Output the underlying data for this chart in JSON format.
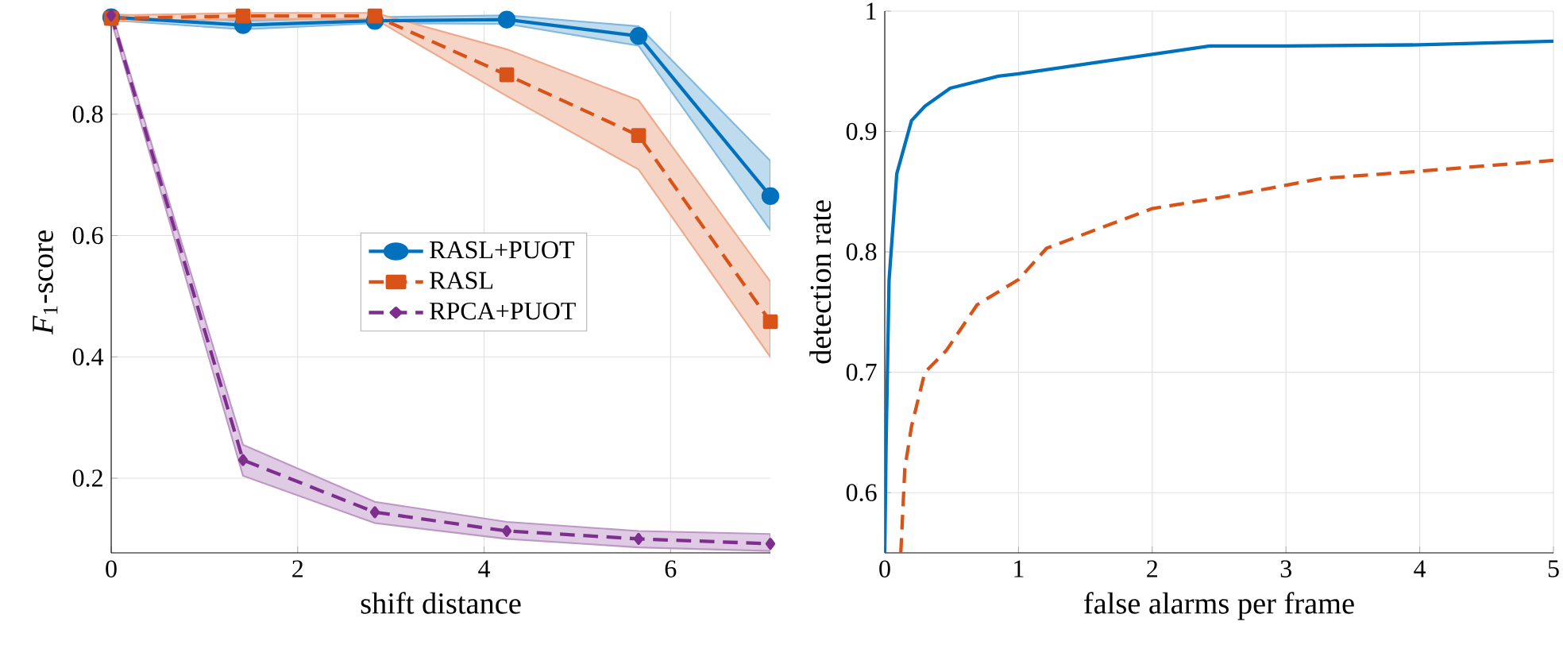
{
  "chart_data": [
    {
      "type": "line",
      "xlabel": "shift distance",
      "ylabel": "*F*$_{1}$-score",
      "xlim": [
        0,
        7.071
      ],
      "ylim": [
        0.077,
        0.97
      ],
      "xticks": [
        0,
        2,
        4,
        6
      ],
      "yticks": [
        0.2,
        0.4,
        0.6,
        0.8
      ],
      "grid": true,
      "legend": "center",
      "series": [
        {
          "name": "RASL+PUOT",
          "color": "#0072bd",
          "marker": "circle",
          "line_style": "solid",
          "x": [
            0,
            1.414,
            2.828,
            4.243,
            5.657,
            7.071
          ],
          "values": [
            0.96,
            0.947,
            0.954,
            0.956,
            0.929,
            0.665
          ],
          "lower": [
            0.955,
            0.94,
            0.95,
            0.949,
            0.913,
            0.609
          ],
          "upper": [
            0.965,
            0.954,
            0.96,
            0.963,
            0.945,
            0.723
          ]
        },
        {
          "name": "RASL",
          "color": "#d95319",
          "marker": "square",
          "line_style": "dashed",
          "x": [
            0,
            1.414,
            2.828,
            4.243,
            5.657,
            7.071
          ],
          "values": [
            0.958,
            0.962,
            0.962,
            0.865,
            0.765,
            0.458
          ],
          "lower": [
            0.953,
            0.957,
            0.957,
            0.83,
            0.709,
            0.4
          ],
          "upper": [
            0.963,
            0.967,
            0.967,
            0.907,
            0.823,
            0.524
          ]
        },
        {
          "name": "RPCA+PUOT",
          "color": "#7e2f8e",
          "marker": "diamond",
          "line_style": "dashed",
          "x": [
            0,
            1.414,
            2.828,
            4.243,
            5.657,
            7.071
          ],
          "values": [
            0.963,
            0.23,
            0.144,
            0.113,
            0.1,
            0.092
          ],
          "lower": [
            0.955,
            0.204,
            0.126,
            0.1,
            0.086,
            0.08
          ],
          "upper": [
            0.97,
            0.255,
            0.161,
            0.128,
            0.113,
            0.108
          ]
        }
      ]
    },
    {
      "type": "line",
      "xlabel": "false alarms per frame",
      "ylabel": "detection rate",
      "xlim": [
        0,
        5
      ],
      "ylim": [
        0.55,
        1
      ],
      "xticks": [
        0,
        1,
        2,
        3,
        4,
        5
      ],
      "yticks": [
        0.6,
        0.7,
        0.8,
        0.9,
        1
      ],
      "grid": true,
      "series": [
        {
          "color": "#0072bd",
          "line_style": "solid",
          "x": [
            0,
            0.01,
            0.032,
            0.09,
            0.2,
            0.3,
            0.49,
            0.85,
            1.0,
            2.43,
            3,
            4,
            5
          ],
          "values": [
            0.55,
            0.64,
            0.776,
            0.865,
            0.909,
            0.921,
            0.936,
            0.946,
            0.948,
            0.971,
            0.971,
            0.972,
            0.975
          ]
        },
        {
          "color": "#d95319",
          "line_style": "dashed",
          "x": [
            0.12,
            0.15,
            0.2,
            0.3,
            0.46,
            0.69,
            1.0,
            1.21,
            2.0,
            2.5,
            3.27,
            4,
            5
          ],
          "values": [
            0.55,
            0.62,
            0.655,
            0.7,
            0.718,
            0.756,
            0.777,
            0.803,
            0.836,
            0.845,
            0.861,
            0.867,
            0.876
          ]
        }
      ]
    }
  ]
}
